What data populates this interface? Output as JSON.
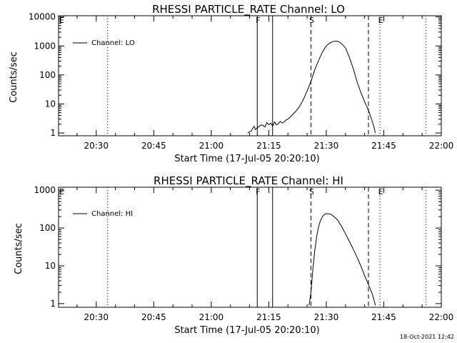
{
  "footer": {
    "timestamp": "18-Oct-2021 12:42"
  },
  "chart_data": [
    {
      "type": "line",
      "title": "RHESSI PARTICLE_RATE Channel: LO",
      "xlabel": "Start Time (17-Jul-05 20:20:10)",
      "ylabel": "Counts/sec",
      "x_ticks": [
        "20:30",
        "20:45",
        "21:00",
        "21:15",
        "21:30",
        "21:45",
        "22:00"
      ],
      "x_range_minutes": [
        20.1667,
        120.0
      ],
      "y_scale": "log",
      "y_ticks": [
        "1",
        "10",
        "100",
        "1000",
        "10000"
      ],
      "ylim": [
        0.8,
        11000
      ],
      "legend": {
        "label": "Channel: LO",
        "placement": "top-left"
      },
      "markers": [
        {
          "label": "F",
          "time": "21:12",
          "style": "solid"
        },
        {
          "label": "",
          "time": "21:16",
          "style": "solid"
        },
        {
          "label": "S",
          "time": "21:26",
          "style": "dashed"
        },
        {
          "label": "",
          "time": "21:41",
          "style": "dashed"
        },
        {
          "label": "E",
          "time": "21:44",
          "style": "dotted"
        },
        {
          "label": "",
          "time": "20:33",
          "style": "dotted"
        },
        {
          "label": "",
          "time": "21:56",
          "style": "dotted"
        }
      ],
      "series": [
        {
          "name": "Channel: LO",
          "x_minutes": [
            69.5,
            70.0,
            70.5,
            71.0,
            71.2,
            71.5,
            72.0,
            72.5,
            73.0,
            73.5,
            74.0,
            74.5,
            75.0,
            75.5,
            76.0,
            76.5,
            77.0,
            77.5,
            78.0,
            78.5,
            79.0,
            79.5,
            80.0,
            81.0,
            82.0,
            83.0,
            84.0,
            85.0,
            86.0,
            86.5,
            87.0,
            88.0,
            89.0,
            90.0,
            91.0,
            92.0,
            93.0,
            94.0,
            95.0,
            96.0,
            97.0,
            98.0,
            99.0,
            100.0,
            101.0,
            102.0,
            102.5,
            102.8
          ],
          "y": [
            1,
            1.1,
            1.2,
            1.6,
            1.7,
            1.3,
            1.5,
            1.7,
            1.9,
            1.8,
            1.6,
            2.3,
            1.9,
            2.2,
            1.7,
            2.4,
            1.9,
            2.1,
            2.5,
            2.2,
            2.4,
            2.8,
            3.0,
            4.0,
            5.5,
            8.0,
            14,
            28,
            60,
            95,
            150,
            320,
            620,
            1000,
            1300,
            1450,
            1450,
            1200,
            850,
            420,
            170,
            60,
            25,
            12,
            6,
            2.5,
            1.5,
            1
          ]
        }
      ]
    },
    {
      "type": "line",
      "title": "RHESSI PARTICLE_RATE Channel: HI",
      "xlabel": "Start Time (17-Jul-05 20:20:10)",
      "ylabel": "Counts/sec",
      "x_ticks": [
        "20:30",
        "20:45",
        "21:00",
        "21:15",
        "21:30",
        "21:45",
        "22:00"
      ],
      "x_range_minutes": [
        20.1667,
        120.0
      ],
      "y_scale": "log",
      "y_ticks": [
        "1",
        "10",
        "100",
        "1000"
      ],
      "ylim": [
        0.8,
        1200
      ],
      "legend": {
        "label": "Channel: HI",
        "placement": "top-left"
      },
      "markers": [
        {
          "label": "F",
          "time": "21:12",
          "style": "solid"
        },
        {
          "label": "",
          "time": "21:16",
          "style": "solid"
        },
        {
          "label": "S",
          "time": "21:26",
          "style": "dashed"
        },
        {
          "label": "",
          "time": "21:41",
          "style": "dashed"
        },
        {
          "label": "E",
          "time": "21:44",
          "style": "dotted"
        },
        {
          "label": "",
          "time": "20:33",
          "style": "dotted"
        },
        {
          "label": "",
          "time": "21:56",
          "style": "dotted"
        }
      ],
      "series": [
        {
          "name": "Channel: HI",
          "x_minutes": [
            85.5,
            86.0,
            86.5,
            87.0,
            87.5,
            88.0,
            88.5,
            89.0,
            89.5,
            90.0,
            90.5,
            91.0,
            91.5,
            92.0,
            92.5,
            93.0,
            94.0,
            95.0,
            96.0,
            97.0,
            98.0,
            99.0,
            100.0,
            101.0,
            102.0,
            102.5,
            102.8
          ],
          "y": [
            0.9,
            2,
            8,
            25,
            60,
            110,
            160,
            200,
            230,
            240,
            240,
            235,
            220,
            200,
            180,
            160,
            110,
            70,
            45,
            28,
            17,
            10,
            5.5,
            3.2,
            1.8,
            1.2,
            0.9
          ]
        }
      ]
    }
  ]
}
